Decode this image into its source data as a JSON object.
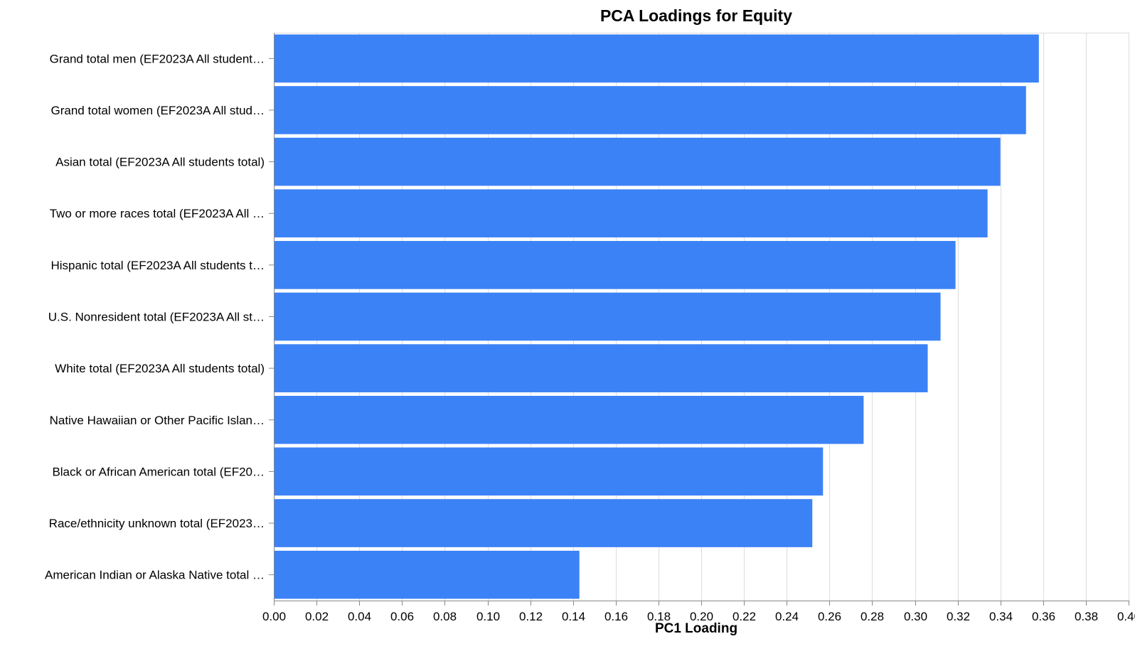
{
  "chart_data": {
    "type": "bar",
    "orientation": "horizontal",
    "title": "PCA Loadings for Equity",
    "xlabel": "PC1 Loading",
    "ylabel": "",
    "xlim": [
      0,
      0.4
    ],
    "grid": true,
    "color": "#3b82f6",
    "x_ticks": [
      "0.00",
      "0.02",
      "0.04",
      "0.06",
      "0.08",
      "0.10",
      "0.12",
      "0.14",
      "0.16",
      "0.18",
      "0.20",
      "0.22",
      "0.24",
      "0.26",
      "0.28",
      "0.30",
      "0.32",
      "0.34",
      "0.36",
      "0.38",
      "0.40"
    ],
    "categories": [
      "Grand total men (EF2023A All student…",
      "Grand total women (EF2023A All stud…",
      "Asian total (EF2023A All students total)",
      "Two or more races total (EF2023A All …",
      "Hispanic total (EF2023A All students t…",
      "U.S. Nonresident total (EF2023A All st…",
      "White total (EF2023A All students total)",
      "Native Hawaiian or Other Pacific Islan…",
      "Black or African American total (EF20…",
      "Race/ethnicity unknown total (EF2023…",
      "American Indian or Alaska Native total …"
    ],
    "values": [
      0.358,
      0.352,
      0.34,
      0.334,
      0.319,
      0.312,
      0.306,
      0.276,
      0.257,
      0.252,
      0.143
    ]
  }
}
